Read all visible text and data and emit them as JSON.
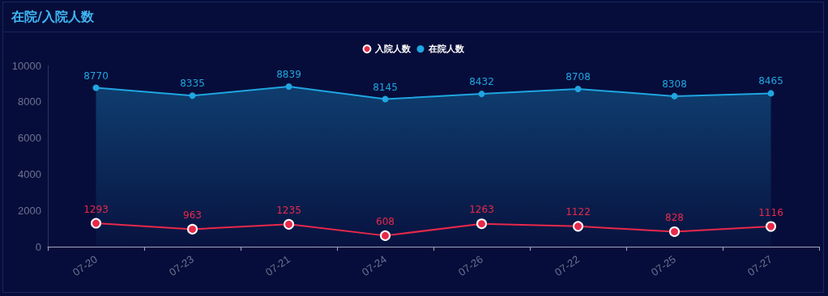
{
  "chart_data": {
    "type": "line",
    "title": "在院/入院人数",
    "categories": [
      "07-20",
      "07-23",
      "07-21",
      "07-24",
      "07-26",
      "07-22",
      "07-25",
      "07-27"
    ],
    "series": [
      {
        "name": "入院人数",
        "type": "line",
        "color": "#e8294a",
        "values": [
          1293,
          963,
          1235,
          608,
          1263,
          1122,
          828,
          1116
        ]
      },
      {
        "name": "在院人数",
        "type": "area",
        "color": "#1fa6e0",
        "values": [
          8770,
          8335,
          8839,
          8145,
          8432,
          8708,
          8308,
          8465
        ]
      }
    ],
    "ylim": [
      0,
      10000
    ],
    "yticks": [
      0,
      2000,
      4000,
      6000,
      8000,
      10000
    ],
    "grid": false,
    "legend": "top",
    "marker": "circle",
    "line_style": "solid",
    "data_labels": true
  }
}
